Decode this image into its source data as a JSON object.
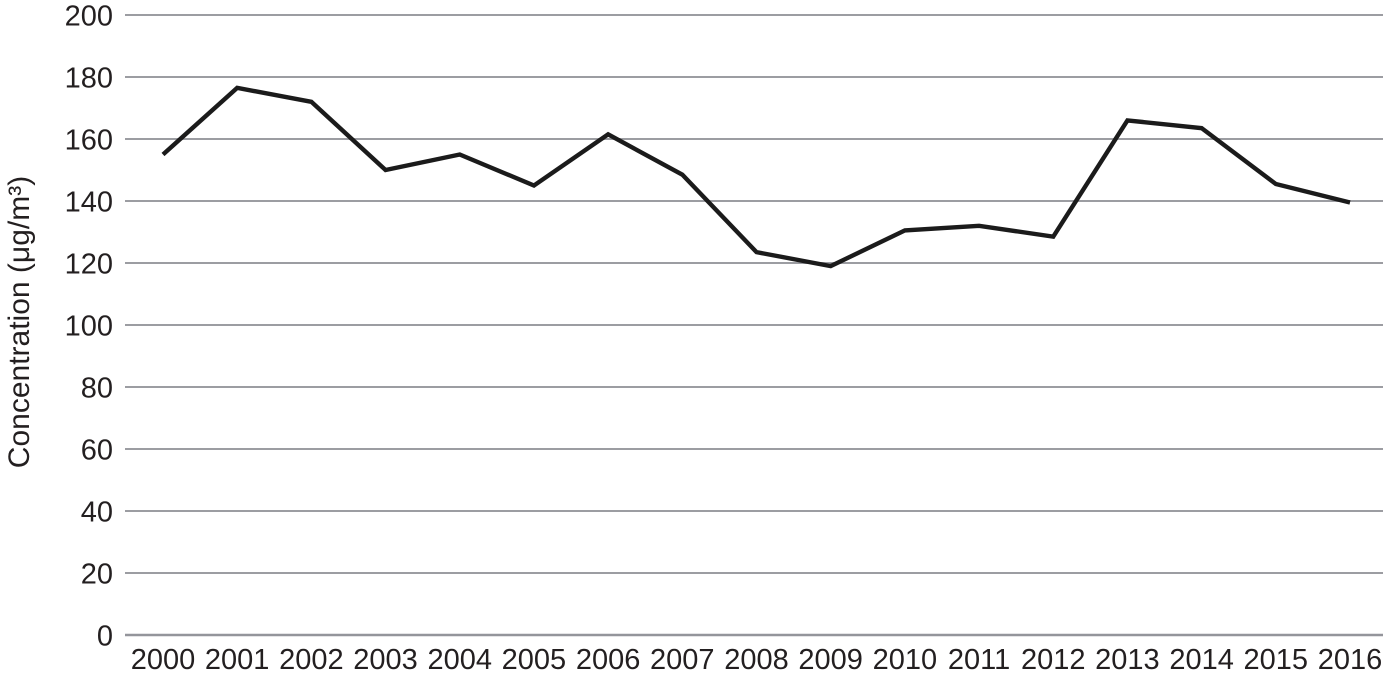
{
  "chart_data": {
    "type": "line",
    "title": "",
    "xlabel": "",
    "ylabel": "Concentration (μg/m³)",
    "categories": [
      "2000",
      "2001",
      "2002",
      "2003",
      "2004",
      "2005",
      "2006",
      "2007",
      "2008",
      "2009",
      "2010",
      "2011",
      "2012",
      "2013",
      "2014",
      "2015",
      "2016"
    ],
    "values": [
      155,
      176.5,
      172,
      150,
      155,
      145,
      161.5,
      148.5,
      123.5,
      119,
      130.5,
      132,
      128.5,
      166,
      163.5,
      145.5,
      139.5
    ],
    "ylim": [
      0,
      200
    ],
    "ytick_step": 20,
    "yticks": [
      0,
      20,
      40,
      60,
      80,
      100,
      120,
      140,
      160,
      180,
      200
    ],
    "grid": "horizontal",
    "legend": "none",
    "colors": {
      "series_line": "#1b1b1b",
      "gridline": "#9c9da2",
      "text": "#231f20",
      "background": "#ffffff"
    }
  }
}
